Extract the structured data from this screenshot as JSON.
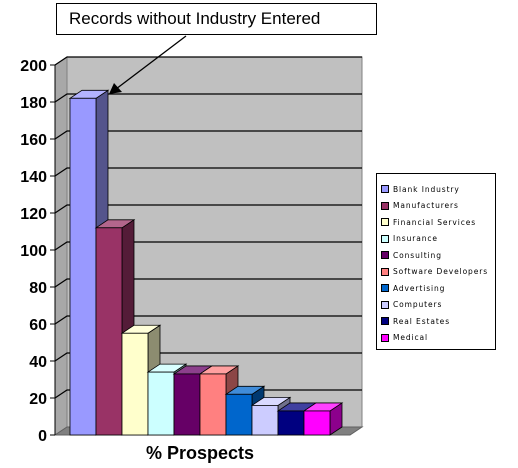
{
  "callout": {
    "text": "Records without Industry Entered"
  },
  "chart_data": {
    "type": "bar",
    "xlabel": "% Prospects",
    "ylim": [
      0,
      200
    ],
    "yticks": [
      0,
      20,
      40,
      60,
      80,
      100,
      120,
      140,
      160,
      180,
      200
    ],
    "grid": true,
    "legend_position": "right",
    "series": [
      {
        "name": "Blank Industry",
        "value": 182,
        "color": "#9999ff"
      },
      {
        "name": "Manufacturers",
        "value": 112,
        "color": "#993366"
      },
      {
        "name": "Financial Services",
        "value": 55,
        "color": "#ffffcc"
      },
      {
        "name": "Insurance",
        "value": 34,
        "color": "#ccffff"
      },
      {
        "name": "Consulting",
        "value": 33,
        "color": "#660066"
      },
      {
        "name": "Software Developers",
        "value": 33,
        "color": "#ff8080"
      },
      {
        "name": "Advertising",
        "value": 22,
        "color": "#0066cc"
      },
      {
        "name": "Computers",
        "value": 16,
        "color": "#ccccff"
      },
      {
        "name": "Real Estates",
        "value": 13,
        "color": "#000080"
      },
      {
        "name": "Medical",
        "value": 13,
        "color": "#ff00ff"
      }
    ]
  }
}
